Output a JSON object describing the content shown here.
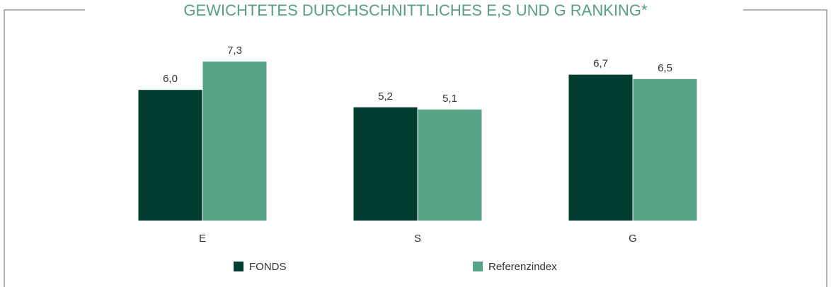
{
  "chart_data": {
    "type": "bar",
    "title": "GEWICHTETES DURCHSCHNITTLICHES E,S UND G RANKING*",
    "categories": [
      "E",
      "S",
      "G"
    ],
    "series": [
      {
        "name": "FONDS",
        "color": "#003d31",
        "values": [
          6.0,
          5.2,
          6.7
        ],
        "value_labels": [
          "6,0",
          "5,2",
          "6,7"
        ]
      },
      {
        "name": "Referenzindex",
        "color": "#58a386",
        "values": [
          7.3,
          5.1,
          6.5
        ],
        "value_labels": [
          "7,3",
          "5,1",
          "6,5"
        ]
      }
    ],
    "ylim": [
      0,
      10
    ]
  }
}
